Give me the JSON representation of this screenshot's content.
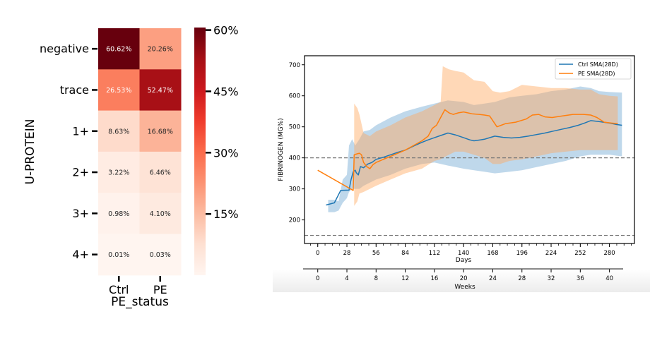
{
  "chart_data": [
    {
      "type": "heatmap",
      "title": "",
      "xlabel": "PE_status",
      "ylabel": "U-PROTEIN",
      "x_categories": [
        "Ctrl",
        "PE"
      ],
      "y_categories": [
        "negative",
        "trace",
        "1+",
        "2+",
        "3+",
        "4+"
      ],
      "values": [
        [
          60.62,
          20.26
        ],
        [
          26.53,
          52.47
        ],
        [
          8.63,
          16.68
        ],
        [
          3.22,
          6.46
        ],
        [
          0.98,
          4.1
        ],
        [
          0.01,
          0.03
        ]
      ],
      "cell_labels": [
        [
          "60.62%",
          "20.26%"
        ],
        [
          "26.53%",
          "52.47%"
        ],
        [
          "8.63%",
          "16.68%"
        ],
        [
          "3.22%",
          "6.46%"
        ],
        [
          "0.98%",
          "4.10%"
        ],
        [
          "0.01%",
          "0.03%"
        ]
      ],
      "colormap": "Reds",
      "colorbar": {
        "range": [
          0,
          60.62
        ],
        "ticks": [
          15,
          30,
          45,
          60
        ],
        "tick_labels": [
          "15%",
          "30%",
          "45%",
          "60%"
        ]
      }
    },
    {
      "type": "line",
      "title": "",
      "xlabel": "Days",
      "ylabel": "FIBRINOGEN (MG%)",
      "secondary_xlabel": "Weeks",
      "xlim": [
        -12.7,
        304
      ],
      "ylim": [
        124,
        729
      ],
      "x_ticks": [
        0,
        28,
        56,
        84,
        112,
        140,
        168,
        196,
        224,
        252,
        280
      ],
      "x_minor_step": 7,
      "secondary_x_ticks": [
        0,
        4,
        8,
        12,
        16,
        20,
        24,
        28,
        32,
        36,
        40
      ],
      "y_ticks": [
        200,
        300,
        400,
        500,
        600,
        700
      ],
      "reference_lines": [
        400,
        150
      ],
      "grid": false,
      "legend": {
        "placement": "top-right",
        "entries": [
          "Ctrl SMA(28D)",
          "PE SMA(28D)"
        ]
      },
      "series": [
        {
          "name": "Ctrl SMA(28D)",
          "color": "#1f77b4",
          "points": [
            [
              8,
              248
            ],
            [
              16,
              255
            ],
            [
              22,
              295
            ],
            [
              30,
              296
            ],
            [
              32,
              330
            ],
            [
              34,
              355
            ],
            [
              36,
              360
            ],
            [
              37,
              352
            ],
            [
              39,
              345
            ],
            [
              41,
              372
            ],
            [
              44,
              368
            ],
            [
              48,
              380
            ],
            [
              52,
              385
            ],
            [
              56,
              395
            ],
            [
              63,
              402
            ],
            [
              70,
              410
            ],
            [
              77,
              418
            ],
            [
              84,
              425
            ],
            [
              92,
              438
            ],
            [
              100,
              450
            ],
            [
              106,
              458
            ],
            [
              112,
              465
            ],
            [
              118,
              472
            ],
            [
              125,
              480
            ],
            [
              132,
              474
            ],
            [
              140,
              465
            ],
            [
              146,
              458
            ],
            [
              150,
              455
            ],
            [
              156,
              458
            ],
            [
              160,
              460
            ],
            [
              166,
              466
            ],
            [
              170,
              470
            ],
            [
              178,
              466
            ],
            [
              186,
              464
            ],
            [
              194,
              466
            ],
            [
              202,
              470
            ],
            [
              210,
              475
            ],
            [
              218,
              480
            ],
            [
              226,
              486
            ],
            [
              234,
              492
            ],
            [
              242,
              498
            ],
            [
              250,
              505
            ],
            [
              256,
              512
            ],
            [
              262,
              520
            ],
            [
              270,
              517
            ],
            [
              280,
              512
            ],
            [
              286,
              508
            ],
            [
              292,
              505
            ]
          ],
          "band": [
            [
              10,
              265,
              225
            ],
            [
              16,
              265,
              225
            ],
            [
              20,
              260,
              230
            ],
            [
              24,
              330,
              255
            ],
            [
              28,
              345,
              270
            ],
            [
              30,
              440,
              290
            ],
            [
              33,
              460,
              300
            ],
            [
              36,
              440,
              300
            ],
            [
              40,
              460,
              300
            ],
            [
              44,
              485,
              310
            ],
            [
              50,
              490,
              320
            ],
            [
              56,
              505,
              330
            ],
            [
              70,
              530,
              345
            ],
            [
              84,
              550,
              365
            ],
            [
              100,
              565,
              380
            ],
            [
              112,
              575,
              385
            ],
            [
              125,
              585,
              375
            ],
            [
              140,
              580,
              365
            ],
            [
              150,
              570,
              360
            ],
            [
              160,
              575,
              355
            ],
            [
              170,
              580,
              350
            ],
            [
              184,
              595,
              355
            ],
            [
              196,
              600,
              360
            ],
            [
              210,
              605,
              370
            ],
            [
              224,
              615,
              380
            ],
            [
              238,
              620,
              390
            ],
            [
              252,
              630,
              405
            ],
            [
              262,
              625,
              410
            ],
            [
              270,
              615,
              410
            ],
            [
              280,
              612,
              410
            ],
            [
              292,
              610,
              405
            ]
          ]
        },
        {
          "name": "PE SMA(28D)",
          "color": "#ff7f0e",
          "points": [
            [
              0,
              360
            ],
            [
              34,
              295
            ],
            [
              35,
              410
            ],
            [
              38,
              413
            ],
            [
              40,
              415
            ],
            [
              42,
              410
            ],
            [
              44,
              385
            ],
            [
              47,
              372
            ],
            [
              50,
              365
            ],
            [
              53,
              378
            ],
            [
              56,
              385
            ],
            [
              63,
              395
            ],
            [
              70,
              405
            ],
            [
              77,
              415
            ],
            [
              84,
              425
            ],
            [
              92,
              440
            ],
            [
              100,
              455
            ],
            [
              106,
              470
            ],
            [
              110,
              495
            ],
            [
              114,
              505
            ],
            [
              118,
              530
            ],
            [
              122,
              555
            ],
            [
              126,
              545
            ],
            [
              130,
              540
            ],
            [
              135,
              545
            ],
            [
              140,
              548
            ],
            [
              148,
              542
            ],
            [
              155,
              540
            ],
            [
              160,
              538
            ],
            [
              165,
              535
            ],
            [
              168,
              520
            ],
            [
              172,
              500
            ],
            [
              176,
              505
            ],
            [
              180,
              510
            ],
            [
              190,
              515
            ],
            [
              200,
              525
            ],
            [
              206,
              538
            ],
            [
              212,
              540
            ],
            [
              218,
              532
            ],
            [
              225,
              530
            ],
            [
              235,
              535
            ],
            [
              245,
              540
            ],
            [
              255,
              540
            ],
            [
              262,
              538
            ],
            [
              268,
              530
            ],
            [
              275,
              515
            ],
            [
              282,
              512
            ],
            [
              288,
              510
            ]
          ],
          "band": [
            [
              35,
              575,
              245
            ],
            [
              38,
              560,
              260
            ],
            [
              40,
              540,
              285
            ],
            [
              44,
              480,
              290
            ],
            [
              50,
              470,
              300
            ],
            [
              56,
              485,
              310
            ],
            [
              70,
              505,
              330
            ],
            [
              84,
              530,
              350
            ],
            [
              100,
              550,
              365
            ],
            [
              112,
              570,
              390
            ],
            [
              118,
              580,
              395
            ],
            [
              120,
              695,
              400
            ],
            [
              126,
              685,
              410
            ],
            [
              132,
              680,
              420
            ],
            [
              140,
              675,
              420
            ],
            [
              150,
              650,
              410
            ],
            [
              160,
              645,
              400
            ],
            [
              168,
              615,
              380
            ],
            [
              175,
              610,
              380
            ],
            [
              184,
              615,
              390
            ],
            [
              196,
              635,
              395
            ],
            [
              210,
              630,
              405
            ],
            [
              224,
              625,
              415
            ],
            [
              238,
              625,
              420
            ],
            [
              252,
              620,
              425
            ],
            [
              262,
              620,
              425
            ],
            [
              270,
              605,
              425
            ],
            [
              280,
              600,
              425
            ],
            [
              288,
              598,
              425
            ]
          ]
        }
      ]
    }
  ]
}
